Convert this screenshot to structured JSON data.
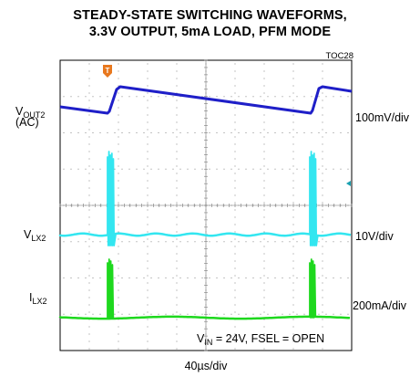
{
  "title_line1": "STEADY-STATE SWITCHING WAVEFORMS,",
  "title_line2": "3.3V OUTPUT, 5mA LOAD, PFM MODE",
  "toc": "TOC28",
  "chart_data": {
    "type": "line",
    "x_division": "40µs/div",
    "trigger_marker": "T",
    "annotation": {
      "main": "V",
      "sub": "IN",
      "rest": " = 24V, FSEL = OPEN"
    },
    "series": [
      {
        "name_main": "V",
        "name_sub": "OUT2",
        "name_extra": "(AC)",
        "scale": "100mV/div",
        "color": "#1f1fc8"
      },
      {
        "name_main": "V",
        "name_sub": "LX2",
        "scale": "10V/div",
        "color": "#33e6f0"
      },
      {
        "name_main": "I",
        "name_sub": "LX2",
        "scale": "200mA/div",
        "color": "#1ed81e"
      }
    ],
    "grid": true
  }
}
